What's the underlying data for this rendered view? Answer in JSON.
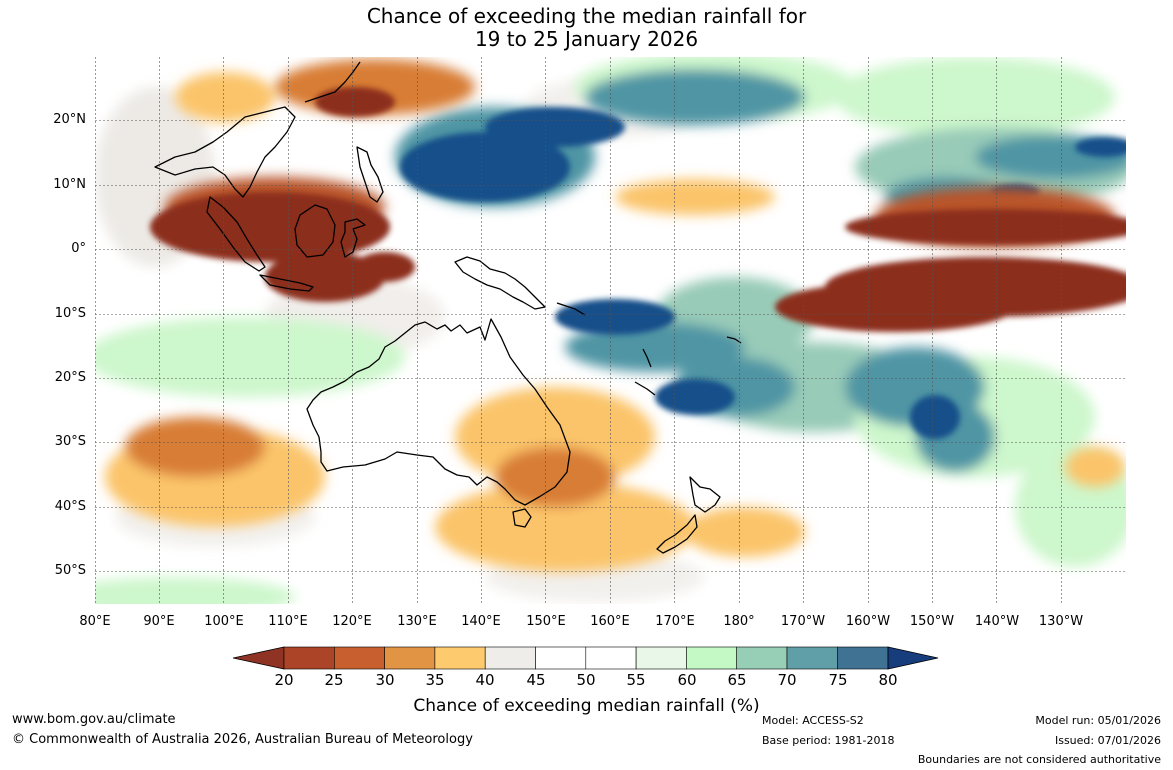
{
  "title": {
    "line1": "Chance of exceeding the median rainfall for",
    "line2": "19 to 25 January 2026"
  },
  "map": {
    "region": "Indo-Pacific: 80°E to 120°W, 30°N to 55°S",
    "lat_labels": [
      "20°N",
      "10°N",
      "0°",
      "10°S",
      "20°S",
      "30°S",
      "40°S",
      "50°S"
    ],
    "lon_labels": [
      "80°E",
      "90°E",
      "100°E",
      "110°E",
      "120°E",
      "130°E",
      "140°E",
      "150°E",
      "160°E",
      "170°E",
      "180°",
      "170°W",
      "160°W",
      "150°W",
      "140°W",
      "130°W"
    ],
    "colors": {
      "dry_strong": "#8c2f1e",
      "dry": "#b9552a",
      "dry_mid": "#d87d35",
      "dry_light": "#fbc46a",
      "neutral": "#edeae6",
      "wet_light": "#cdf7cc",
      "wet": "#98cbb8",
      "wet_mid": "#4f95a4",
      "wet_strong": "#13508a",
      "land_outline": "#000000"
    }
  },
  "colorbar": {
    "title": "Chance of exceeding median rainfall (%)",
    "ticks": [
      "20",
      "25",
      "30",
      "35",
      "40",
      "45",
      "50",
      "55",
      "60",
      "65",
      "70",
      "75",
      "80"
    ],
    "colors": [
      "#8f3424",
      "#ac4527",
      "#c7602e",
      "#e29445",
      "#fdca6e",
      "#eeede9",
      "#ffffff",
      "#ffffff",
      "#e8f7e7",
      "#c4f9c6",
      "#97ceb6",
      "#609fa7",
      "#3f7293",
      "#173d7c"
    ]
  },
  "footer": {
    "website": "www.bom.gov.au/climate",
    "copyright": "© Commonwealth of Australia 2026, Australian Bureau of Meteorology",
    "model": "Model: ACCESS-S2",
    "base_period": "Base period: 1981-2018",
    "model_run": "Model run: 05/01/2026",
    "issued": "Issued: 07/01/2026",
    "disclaimer": "Boundaries are not considered authoritative"
  }
}
